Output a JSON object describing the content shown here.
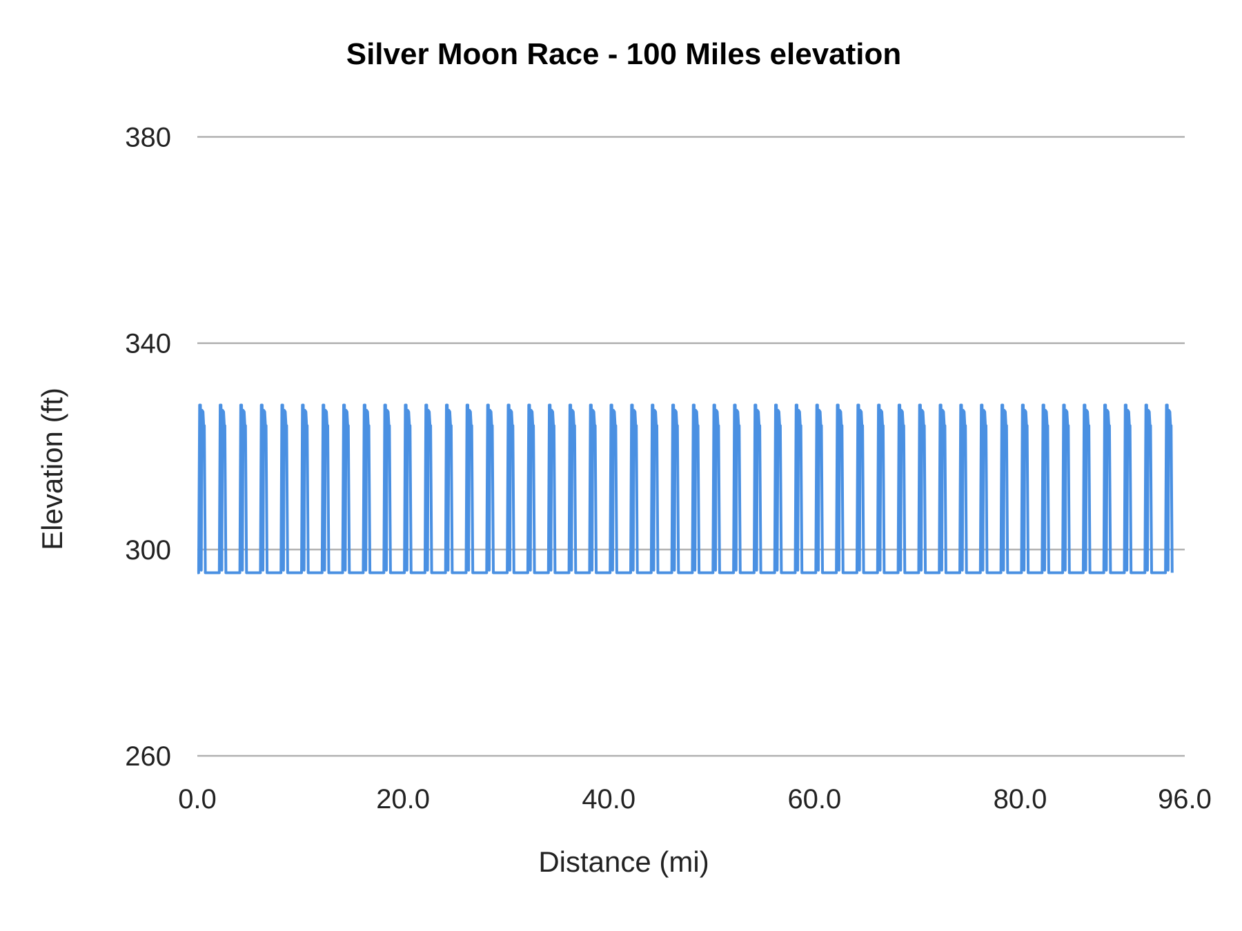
{
  "chart_data": {
    "type": "line",
    "title": "Silver Moon Race - 100 Miles elevation",
    "xlabel": "Distance (mi)",
    "ylabel": "Elevation (ft)",
    "xlim": [
      0,
      96
    ],
    "ylim": [
      260,
      380
    ],
    "x_ticks": [
      "0.0",
      "20.0",
      "40.0",
      "60.0",
      "80.0",
      "96.0"
    ],
    "x_tick_values": [
      0,
      20,
      40,
      60,
      80,
      96
    ],
    "y_ticks": [
      "260",
      "300",
      "340",
      "380"
    ],
    "y_tick_values": [
      260,
      300,
      340,
      380
    ],
    "grid": "horizontal",
    "legend": "none",
    "line_color": "#4a90e2",
    "grid_color": "#b0b0b0",
    "series": [
      {
        "lap_length_mi": 2,
        "laps": 48,
        "lap_profile": [
          [
            0,
            295.5
          ],
          [
            0.13,
            295.5
          ],
          [
            0.22,
            328
          ],
          [
            0.3,
            328
          ],
          [
            0.38,
            296
          ],
          [
            0.45,
            327
          ],
          [
            0.55,
            326.7
          ],
          [
            0.62,
            324
          ],
          [
            0.68,
            324
          ],
          [
            0.78,
            295.5
          ],
          [
            2.0,
            295.5
          ]
        ],
        "end_mi": 95.7
      }
    ]
  }
}
